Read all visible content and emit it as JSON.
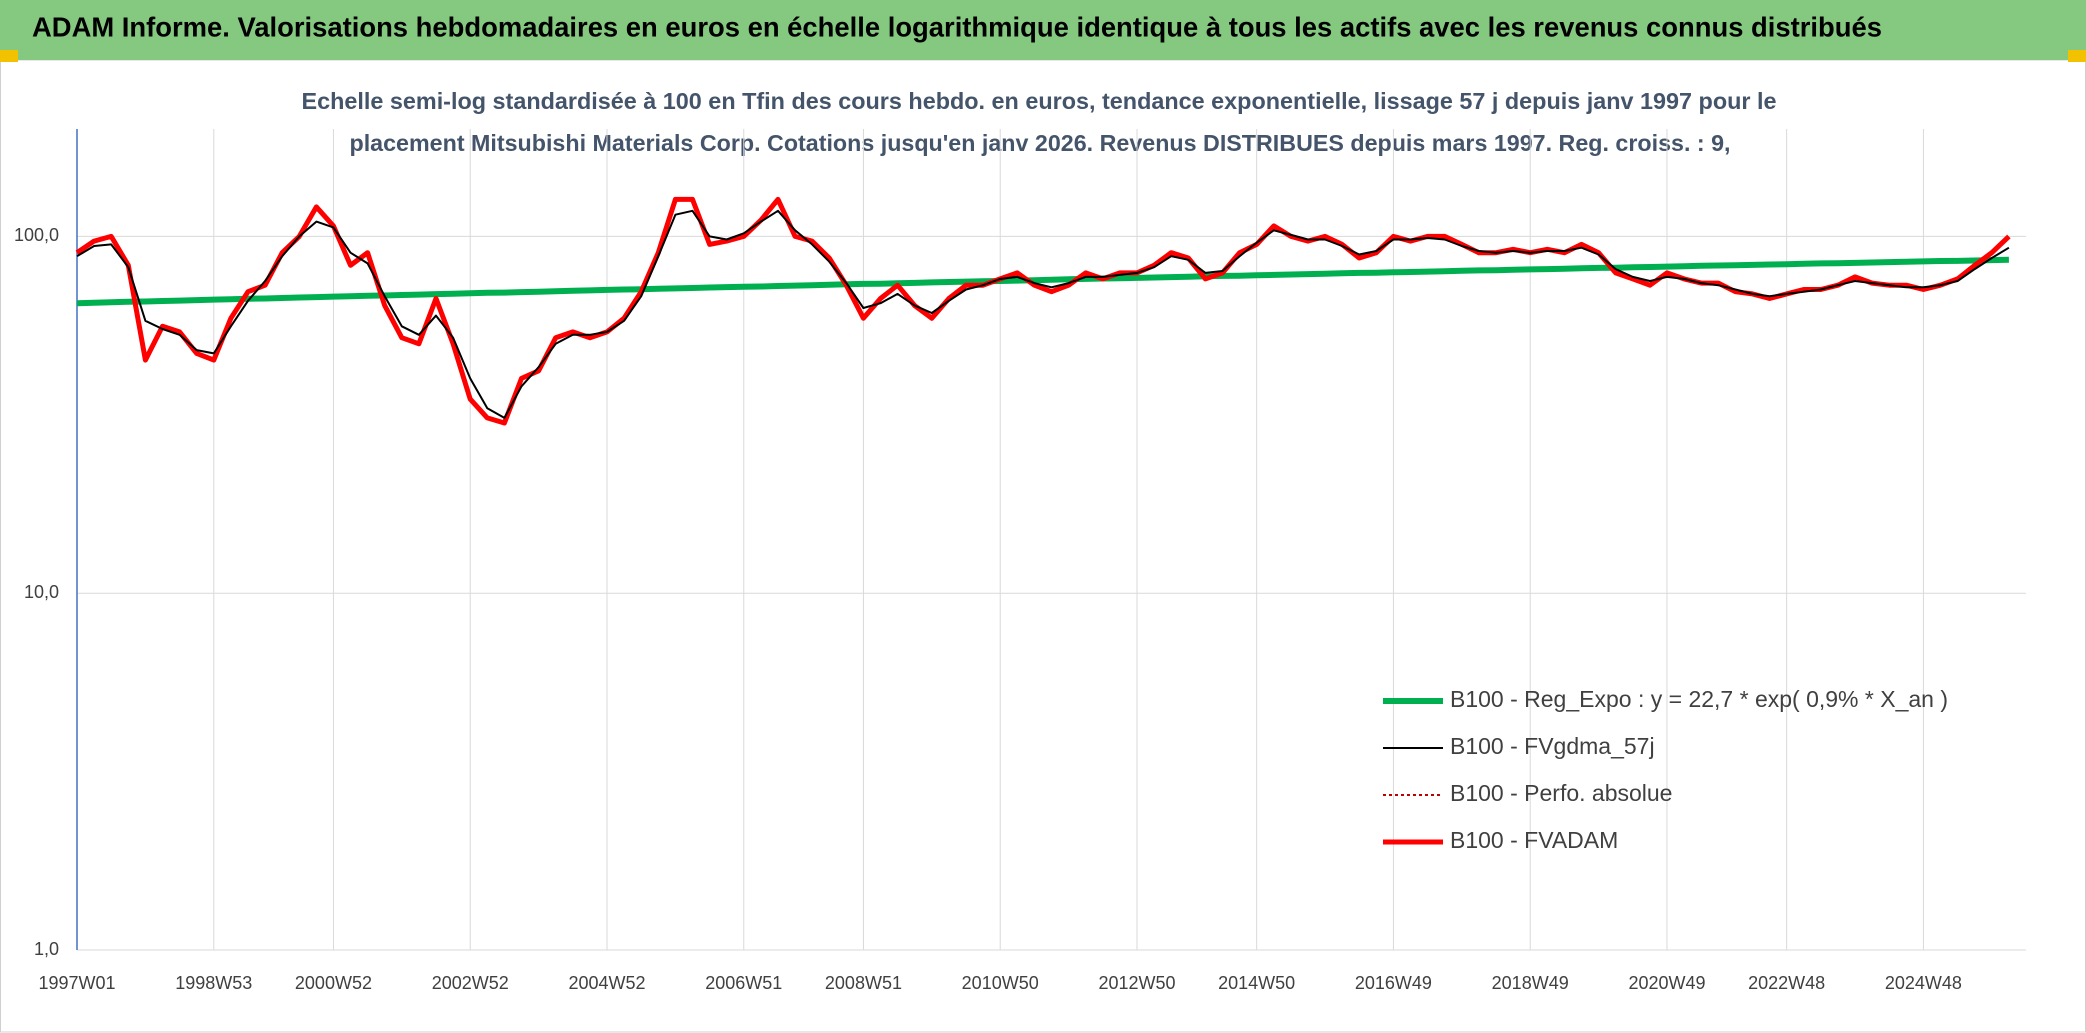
{
  "chart_data": {
    "type": "line",
    "title": "ADAM Informe. Valorisations hebdomadaires en euros en échelle logarithmique identique à tous les actifs avec les revenus connus distribués",
    "subtitle": [
      "Echelle semi-log standardisée à 100 en Tfin des cours hebdo. en euros, tendance exponentielle, lissage 57 j depuis janv 1997 pour le",
      "placement Mitsubishi Materials Corp. Cotations jusqu'en janv 2026. Revenus DISTRIBUES depuis mars 1997. Reg. croiss. : 9,"
    ],
    "log_scale": true,
    "grid": true,
    "legend": "lower right",
    "ylim": [
      1,
      200
    ],
    "yticks": [
      {
        "value": 1,
        "label": "1,0"
      },
      {
        "value": 10,
        "label": "10,0"
      },
      {
        "value": 100,
        "label": "100,0"
      }
    ],
    "categories": [
      "1997W01",
      null,
      null,
      null,
      null,
      null,
      null,
      null,
      "1998W53",
      null,
      null,
      null,
      null,
      null,
      null,
      "2000W52",
      null,
      null,
      null,
      null,
      null,
      null,
      null,
      "2002W52",
      null,
      null,
      null,
      null,
      null,
      null,
      null,
      "2004W52",
      null,
      null,
      null,
      null,
      null,
      null,
      null,
      "2006W51",
      null,
      null,
      null,
      null,
      null,
      null,
      "2008W51",
      null,
      null,
      null,
      null,
      null,
      null,
      null,
      "2010W50",
      null,
      null,
      null,
      null,
      null,
      null,
      null,
      "2012W50",
      null,
      null,
      null,
      null,
      null,
      null,
      "2014W50",
      null,
      null,
      null,
      null,
      null,
      null,
      null,
      "2016W49",
      null,
      null,
      null,
      null,
      null,
      null,
      null,
      "2018W49",
      null,
      null,
      null,
      null,
      null,
      null,
      null,
      "2020W49",
      null,
      null,
      null,
      null,
      null,
      null,
      "2022W48",
      null,
      null,
      null,
      null,
      null,
      null,
      null,
      "2024W48",
      null,
      null,
      null,
      null,
      null
    ],
    "series": [
      {
        "name": "B100 - Reg_Expo : y = 22,7 * exp( 0,9% *  X_an )",
        "color": "#00b050",
        "style": "solid",
        "width": 6,
        "values": [
          65.0,
          65.2,
          65.4,
          65.6,
          65.7,
          65.9,
          66.1,
          66.3,
          66.5,
          66.7,
          66.9,
          67.0,
          67.2,
          67.4,
          67.6,
          67.8,
          68.0,
          68.2,
          68.3,
          68.5,
          68.7,
          68.9,
          69.1,
          69.3,
          69.5,
          69.6,
          69.8,
          70.0,
          70.2,
          70.4,
          70.6,
          70.8,
          71.0,
          71.1,
          71.3,
          71.5,
          71.7,
          71.9,
          72.1,
          72.3,
          72.4,
          72.6,
          72.8,
          73.0,
          73.2,
          73.4,
          73.6,
          73.7,
          73.9,
          74.1,
          74.3,
          74.5,
          74.7,
          74.9,
          75.0,
          75.2,
          75.4,
          75.6,
          75.8,
          76.0,
          76.2,
          76.3,
          76.5,
          76.7,
          76.9,
          77.1,
          77.3,
          77.5,
          77.6,
          77.8,
          78.0,
          78.2,
          78.4,
          78.6,
          78.8,
          79.0,
          79.1,
          79.3,
          79.5,
          79.7,
          79.9,
          80.1,
          80.3,
          80.4,
          80.6,
          80.8,
          81.0,
          81.2,
          81.4,
          81.6,
          81.7,
          81.9,
          82.1,
          82.3,
          82.5,
          82.7,
          82.9,
          83.0,
          83.2,
          83.4,
          83.6,
          83.8,
          84.0,
          84.1,
          84.3,
          84.5,
          84.7,
          84.9,
          85.1,
          85.3,
          85.4,
          85.6,
          85.8,
          86.0
        ]
      },
      {
        "name": "B100 - FVgdma_57j",
        "color": "#000000",
        "style": "solid",
        "width": 2,
        "values": [
          88,
          94,
          95,
          82,
          58,
          55,
          53,
          48,
          47,
          56,
          66,
          75,
          88,
          100,
          110,
          106,
          90,
          84,
          68,
          56,
          53,
          60,
          52,
          40,
          33,
          31,
          38,
          43,
          50,
          53,
          53,
          54,
          58,
          68,
          88,
          115,
          118,
          100,
          98,
          102,
          110,
          118,
          104,
          95,
          85,
          74,
          63,
          65,
          69,
          64,
          61,
          66,
          71,
          73,
          76,
          77,
          74,
          72,
          74,
          77,
          77,
          78,
          79,
          82,
          88,
          86,
          79,
          80,
          88,
          96,
          104,
          101,
          98,
          98,
          94,
          89,
          91,
          98,
          98,
          99,
          98,
          94,
          91,
          90,
          91,
          90,
          91,
          91,
          93,
          89,
          81,
          77,
          75,
          77,
          76,
          74,
          73,
          71,
          69,
          68,
          69,
          70,
          71,
          73,
          75,
          74,
          73,
          72,
          72,
          73,
          75,
          81,
          87,
          93
        ]
      },
      {
        "name": "B100 - Perfo. absolue",
        "color": "#c00000",
        "style": "dotted",
        "width": 2,
        "values": [
          90,
          97,
          100,
          83,
          45,
          56,
          54,
          47,
          45,
          59,
          70,
          73,
          90,
          100,
          121,
          107,
          83,
          90,
          64,
          52,
          50,
          67,
          50,
          35,
          31,
          30,
          40,
          42,
          52,
          54,
          52,
          54,
          59,
          70,
          90,
          127,
          127,
          95,
          97,
          100,
          111,
          127,
          100,
          97,
          87,
          73,
          59,
          67,
          73,
          64,
          59,
          67,
          73,
          73,
          76,
          79,
          73,
          70,
          73,
          79,
          76,
          79,
          79,
          83,
          90,
          87,
          76,
          79,
          90,
          95,
          107,
          100,
          97,
          100,
          95,
          87,
          90,
          100,
          97,
          100,
          100,
          95,
          90,
          90,
          92,
          90,
          92,
          90,
          95,
          90,
          79,
          76,
          73,
          79,
          76,
          74,
          74,
          70,
          69,
          67,
          69,
          71,
          71,
          73,
          77,
          74,
          73,
          73,
          71,
          73,
          76,
          83,
          90,
          100
        ]
      },
      {
        "name": "B100 - FVADAM",
        "color": "#ff0000",
        "style": "solid",
        "width": 5,
        "values": [
          90,
          97,
          100,
          83,
          45,
          56,
          54,
          47,
          45,
          59,
          70,
          73,
          90,
          100,
          121,
          107,
          83,
          90,
          64,
          52,
          50,
          67,
          50,
          35,
          31,
          30,
          40,
          42,
          52,
          54,
          52,
          54,
          59,
          70,
          90,
          127,
          127,
          95,
          97,
          100,
          111,
          127,
          100,
          97,
          87,
          73,
          59,
          67,
          73,
          64,
          59,
          67,
          73,
          73,
          76,
          79,
          73,
          70,
          73,
          79,
          76,
          79,
          79,
          83,
          90,
          87,
          76,
          79,
          90,
          95,
          107,
          100,
          97,
          100,
          95,
          87,
          90,
          100,
          97,
          100,
          100,
          95,
          90,
          90,
          92,
          90,
          92,
          90,
          95,
          90,
          79,
          76,
          73,
          79,
          76,
          74,
          74,
          70,
          69,
          67,
          69,
          71,
          71,
          73,
          77,
          74,
          73,
          73,
          71,
          73,
          76,
          83,
          90,
          100
        ]
      }
    ]
  }
}
